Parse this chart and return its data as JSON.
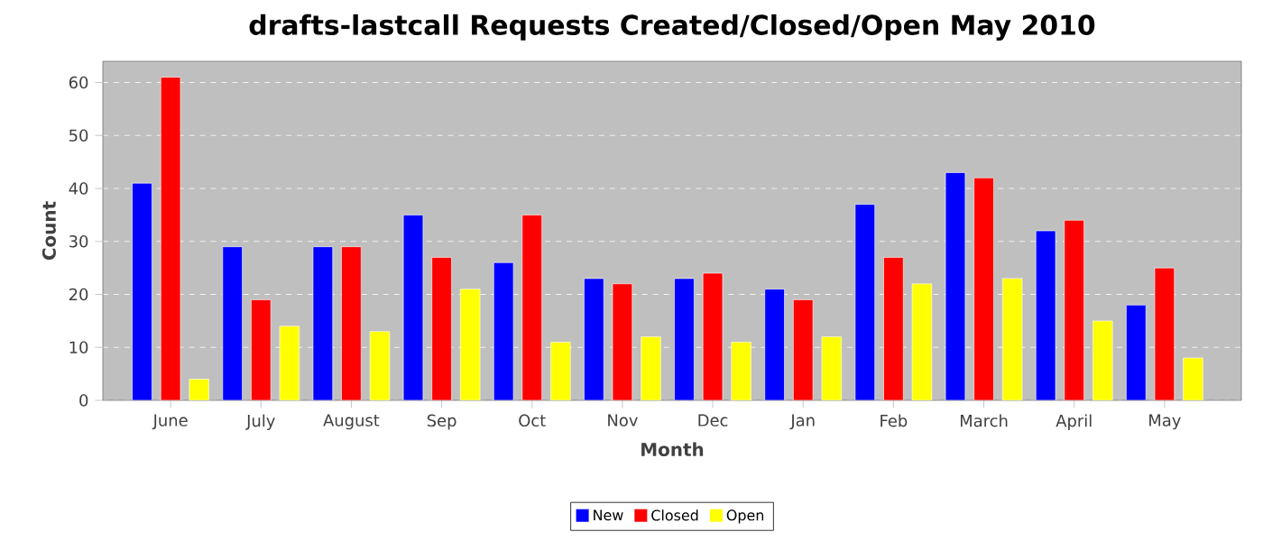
{
  "chart_data": {
    "type": "bar",
    "title": "drafts-lastcall Requests Created/Closed/Open May 2010",
    "xlabel": "Month",
    "ylabel": "Count",
    "categories": [
      "June",
      "July",
      "August",
      "Sep",
      "Oct",
      "Nov",
      "Dec",
      "Jan",
      "Feb",
      "March",
      "April",
      "May"
    ],
    "series": [
      {
        "name": "New",
        "color": "#0000ff",
        "values": [
          41,
          29,
          29,
          35,
          26,
          23,
          23,
          21,
          37,
          43,
          32,
          18
        ]
      },
      {
        "name": "Closed",
        "color": "#ff0000",
        "values": [
          61,
          19,
          29,
          27,
          35,
          22,
          24,
          19,
          27,
          42,
          34,
          25
        ]
      },
      {
        "name": "Open",
        "color": "#ffff00",
        "values": [
          4,
          14,
          13,
          21,
          11,
          12,
          11,
          12,
          22,
          23,
          15,
          8
        ]
      }
    ],
    "ylim": [
      0,
      64
    ],
    "yticks": [
      0,
      10,
      20,
      30,
      40,
      50,
      60
    ],
    "grid": "y",
    "legend": "bottom"
  }
}
